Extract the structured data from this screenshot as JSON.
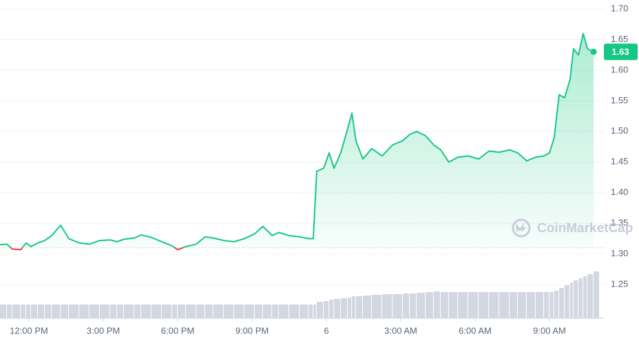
{
  "chart_data": {
    "type": "line",
    "x": [
      -1.17,
      -0.89,
      -0.67,
      -0.33,
      -0.11,
      0.08,
      0.36,
      0.64,
      0.92,
      1.28,
      1.61,
      2.03,
      2.44,
      2.86,
      3.28,
      3.56,
      3.83,
      4.25,
      4.53,
      4.94,
      5.36,
      5.78,
      6.0,
      6.33,
      6.75,
      7.11,
      7.44,
      7.86,
      8.28,
      8.69,
      9.11,
      9.44,
      9.81,
      10.08,
      10.5,
      10.92,
      11.28,
      11.47,
      11.61,
      11.89,
      12.11,
      12.31,
      12.58,
      12.86,
      13.03,
      13.19,
      13.47,
      13.83,
      14.25,
      14.67,
      15.08,
      15.36,
      15.64,
      16.0,
      16.33,
      16.61,
      16.94,
      17.31,
      17.72,
      18.14,
      18.56,
      18.97,
      19.39,
      19.72,
      20.08,
      20.44,
      20.78,
      21.0,
      21.19,
      21.39,
      21.61,
      21.83,
      21.97,
      22.17,
      22.36,
      22.53,
      22.78
    ],
    "values": [
      1.315,
      1.316,
      1.308,
      1.307,
      1.318,
      1.312,
      1.318,
      1.322,
      1.33,
      1.347,
      1.325,
      1.318,
      1.316,
      1.322,
      1.323,
      1.32,
      1.324,
      1.326,
      1.331,
      1.327,
      1.32,
      1.313,
      1.307,
      1.312,
      1.316,
      1.328,
      1.326,
      1.322,
      1.32,
      1.325,
      1.333,
      1.345,
      1.33,
      1.335,
      1.33,
      1.328,
      1.325,
      1.325,
      1.435,
      1.44,
      1.465,
      1.44,
      1.465,
      1.505,
      1.53,
      1.485,
      1.455,
      1.472,
      1.46,
      1.478,
      1.485,
      1.495,
      1.5,
      1.493,
      1.478,
      1.47,
      1.45,
      1.458,
      1.46,
      1.455,
      1.468,
      1.466,
      1.47,
      1.465,
      1.452,
      1.458,
      1.46,
      1.465,
      1.49,
      1.56,
      1.555,
      1.585,
      1.635,
      1.625,
      1.66,
      1.635,
      1.63
    ],
    "volume": [
      20,
      20,
      20,
      20,
      20,
      20,
      20,
      20,
      20,
      20,
      20,
      20,
      20,
      20,
      20,
      20,
      20,
      20,
      20,
      20,
      20,
      20,
      20,
      20,
      20,
      20,
      20,
      20,
      20,
      20,
      20,
      20,
      20,
      20,
      20,
      20,
      20,
      20,
      24,
      25,
      27,
      28,
      29,
      30,
      32,
      32,
      33,
      34,
      35,
      35,
      36,
      36,
      37,
      38,
      39,
      38,
      38,
      38,
      38,
      38,
      38,
      38,
      38,
      38,
      38,
      38,
      38,
      38,
      40,
      44,
      48,
      52,
      55,
      58,
      61,
      64,
      68
    ],
    "xlim": [
      -1.1667,
      23.222
    ],
    "ylim": [
      1.195,
      1.7146
    ],
    "yticks": [
      1.25,
      {
        "value": 1.3,
        "label": "1.30"
      },
      1.35,
      {
        "value": 1.4,
        "label": "1.40"
      },
      1.45,
      {
        "value": 1.5,
        "label": "1.50"
      },
      1.55,
      {
        "value": 1.6,
        "label": "1.60"
      },
      1.65,
      {
        "value": 1.7,
        "label": "1.70"
      }
    ],
    "xticks": [
      {
        "value": 0,
        "label": "12:00 PM"
      },
      {
        "value": 3,
        "label": "3:00 PM"
      },
      {
        "value": 6,
        "label": "6:00 PM"
      },
      {
        "value": 9,
        "label": "9:00 PM"
      },
      {
        "value": 12,
        "label": "6"
      },
      {
        "value": 15,
        "label": "3:00 AM"
      },
      {
        "value": 18,
        "label": "6:00 AM"
      },
      {
        "value": 21,
        "label": "9:00 AM"
      }
    ],
    "baseline": 1.31,
    "color": "#16c784",
    "down_color": "#ea3943",
    "volume_color": "#d3d7e2",
    "grid": true,
    "watermark": "CoinMarketCap"
  }
}
